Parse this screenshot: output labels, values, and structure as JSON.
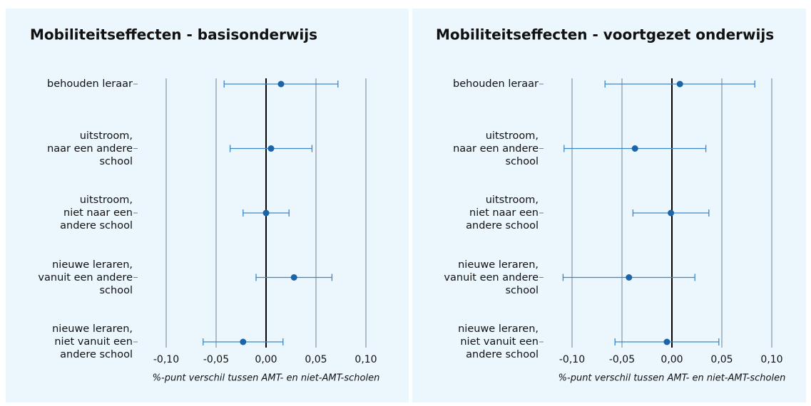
{
  "chart_data": [
    {
      "type": "dot",
      "title": "Mobiliteitseffecten - basisonderwijs",
      "x_label": "%-punt verschil tussen AMT- en niet-AMT-scholen",
      "categories": [
        "behouden leraar",
        "uitstroom,\nnaar een andere\nschool",
        "uitstroom,\nniet naar een\nandere school",
        "nieuwe leraren,\nvanuit een andere\nschool",
        "nieuwe leraren,\nniet vanuit een\nandere school"
      ],
      "values": [
        0.015,
        0.005,
        0.0,
        0.028,
        -0.023
      ],
      "errors": [
        0.057,
        0.041,
        0.023,
        0.038,
        0.04
      ],
      "color": "#1c64a8",
      "xlim": [
        -0.115,
        0.12
      ],
      "xticks": [
        {
          "value": -0.1,
          "label": "-0,10"
        },
        {
          "value": -0.05,
          "label": "-0,05"
        },
        {
          "value": 0,
          "label": "0,00"
        },
        {
          "value": 0.05,
          "label": "0,05"
        },
        {
          "value": 0.1,
          "label": "0,10"
        }
      ],
      "grid": true
    },
    {
      "type": "dot",
      "title": "Mobiliteitseffecten - voortgezet onderwijs",
      "x_label": "%-punt verschil tussen AMT- en niet-AMT-scholen",
      "categories": [
        "behouden leraar",
        "uitstroom,\nnaar een andere\nschool",
        "uitstroom,\nniet naar een\nandere school",
        "nieuwe leraren,\nvanuit een andere\nschool",
        "nieuwe leraren,\nniet vanuit een\nandere school"
      ],
      "values": [
        0.008,
        -0.037,
        -0.001,
        -0.043,
        -0.005
      ],
      "errors": [
        0.075,
        0.071,
        0.038,
        0.066,
        0.052
      ],
      "color": "#1c64a8",
      "xlim": [
        -0.115,
        0.12
      ],
      "xticks": [
        {
          "value": -0.1,
          "label": "-0,10"
        },
        {
          "value": -0.05,
          "label": "-0,05"
        },
        {
          "value": 0,
          "label": "0,00"
        },
        {
          "value": 0.05,
          "label": "0,05"
        },
        {
          "value": 0.1,
          "label": "0,10"
        }
      ],
      "grid": true
    }
  ]
}
